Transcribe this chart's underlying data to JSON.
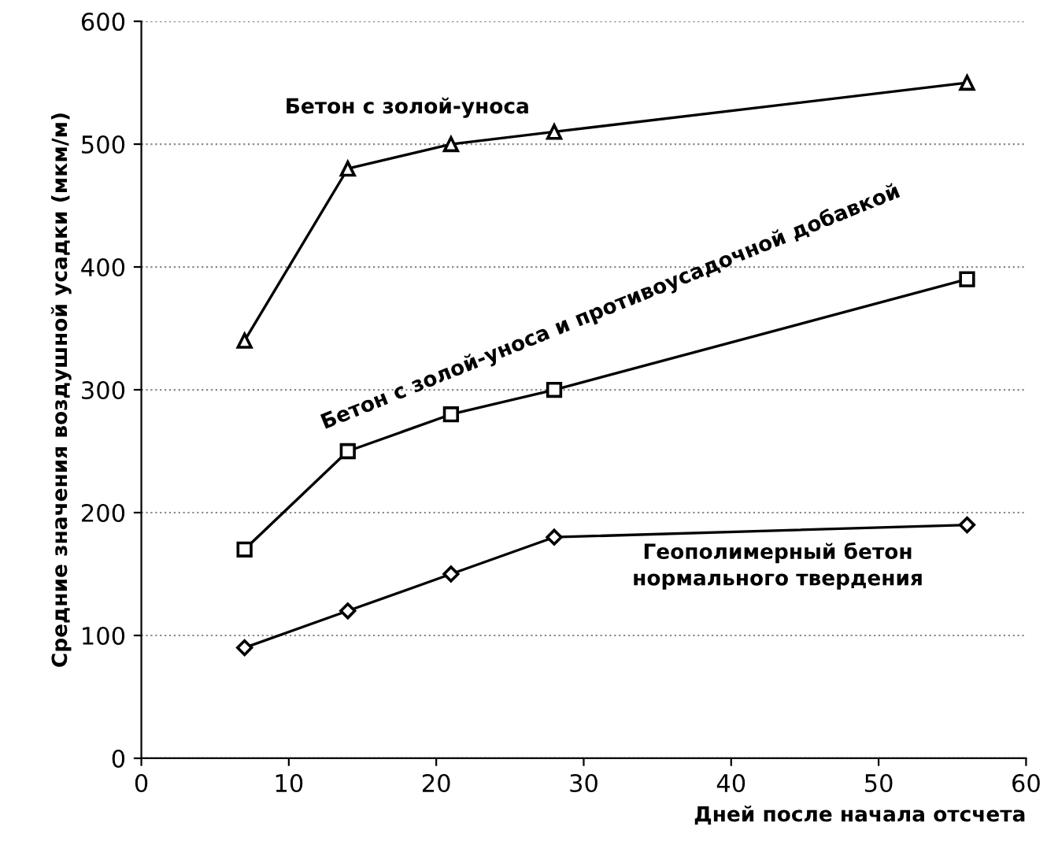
{
  "chart_data": {
    "type": "line",
    "xlabel": "Дней после начала отсчета",
    "ylabel": "Средние значения воздушной усадки (мкм/м)",
    "x": [
      7,
      14,
      21,
      28,
      56
    ],
    "series": [
      {
        "name": "Бетон с золой-уноса",
        "color": "#000000",
        "marker": "triangle",
        "values": [
          340,
          480,
          500,
          510,
          550
        ]
      },
      {
        "name": "Бетон с золой-уноса и противоусадочной добавкой",
        "color": "#000000",
        "marker": "square",
        "values": [
          170,
          250,
          280,
          300,
          390
        ]
      },
      {
        "name": "Геополимерный бетон\nнормального твердения",
        "color": "#000000",
        "marker": "diamond",
        "values": [
          90,
          120,
          150,
          180,
          190
        ]
      }
    ],
    "xlim": [
      0,
      60
    ],
    "xticks": [
      0,
      10,
      20,
      30,
      40,
      50,
      60
    ],
    "ylim": [
      0,
      600
    ],
    "yticks": [
      0,
      100,
      200,
      300,
      400,
      500,
      600
    ],
    "grid": "y",
    "legend": false,
    "line_style": "solid"
  }
}
